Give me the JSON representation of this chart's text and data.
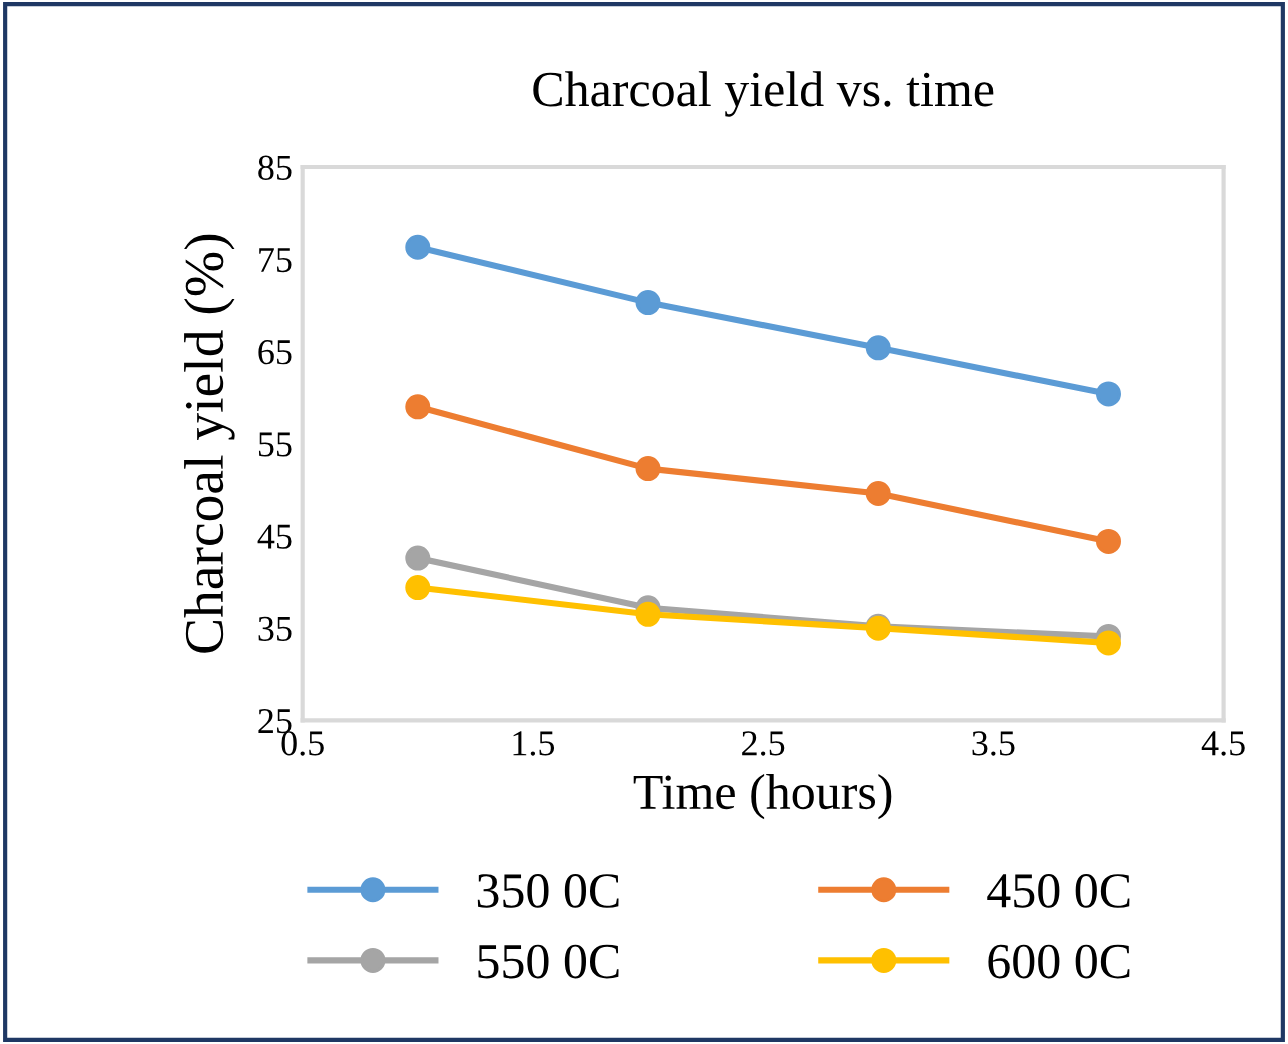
{
  "chart_data": {
    "type": "line",
    "title": "Charcoal yield vs. time",
    "xlabel": "Time (hours)",
    "ylabel": "Charcoal yield (%)",
    "x": [
      1,
      2,
      3,
      4
    ],
    "series": [
      {
        "name": "350 0C",
        "color": "#5b9bd5",
        "values": [
          76.3,
          70.3,
          65.4,
          60.4
        ]
      },
      {
        "name": "450 0C",
        "color": "#ed7d31",
        "values": [
          59.0,
          52.3,
          49.6,
          44.4
        ]
      },
      {
        "name": "550 0C",
        "color": "#a5a5a5",
        "values": [
          42.6,
          37.2,
          35.2,
          34.1
        ]
      },
      {
        "name": "600 0C",
        "color": "#ffc000",
        "values": [
          39.4,
          36.5,
          35.0,
          33.4
        ]
      }
    ],
    "xlim": [
      0.5,
      4.5
    ],
    "xticks": [
      0.5,
      1.5,
      2.5,
      3.5,
      4.5
    ],
    "ylim": [
      25,
      85
    ],
    "yticks": [
      25,
      35,
      45,
      55,
      65,
      75,
      85
    ],
    "marker": "circle",
    "line_style": "solid",
    "grid": false,
    "legend": "bottom"
  }
}
